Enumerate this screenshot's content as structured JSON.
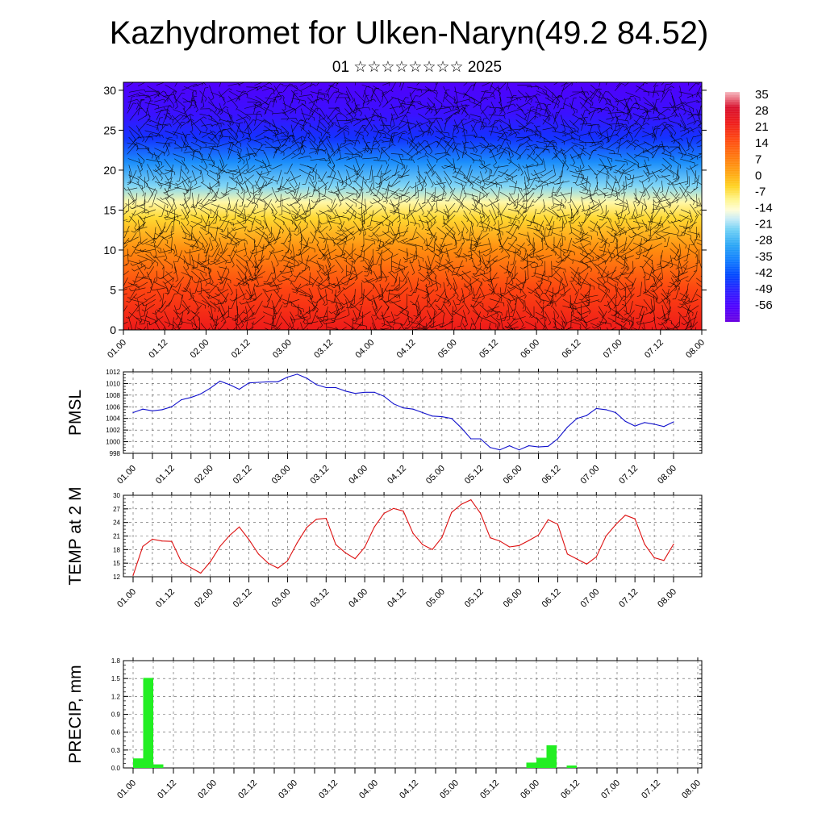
{
  "title": "Kazhydromet for Ulken-Naryn(49.2 84.52)",
  "subtitle": "01 ☆☆☆☆☆☆☆☆ 2025",
  "colors": {
    "pmsl_line": "#1111cc",
    "temp_line": "#dd1111",
    "precip_bar": "#22ee22",
    "axis": "#000000"
  },
  "chart_data": [
    {
      "id": "cross_section",
      "type": "heatmap",
      "x_tick_labels": [
        "01.00",
        "01.12",
        "02.00",
        "02.12",
        "03.00",
        "03.12",
        "04.00",
        "04.12",
        "05.00",
        "05.12",
        "06.00",
        "06.12",
        "07.00",
        "07.12",
        "08.00"
      ],
      "y_tick_labels": [
        "0",
        "5",
        "10",
        "15",
        "20",
        "25",
        "30"
      ],
      "ylim": [
        0,
        31
      ],
      "colorbar_labels": [
        "35",
        "28",
        "21",
        "14",
        "7",
        "0",
        "-7",
        "-14",
        "-21",
        "-28",
        "-35",
        "-42",
        "-49",
        "-56"
      ],
      "colorbar_range": [
        -63,
        42
      ],
      "overlay": "wind barbs",
      "temperature_profile": [
        {
          "level": 0,
          "value": 28
        },
        {
          "level": 5,
          "value": 21
        },
        {
          "level": 10,
          "value": 9
        },
        {
          "level": 14,
          "value": -2
        },
        {
          "level": 16,
          "value": -9
        },
        {
          "level": 18,
          "value": -20
        },
        {
          "level": 21,
          "value": -32
        },
        {
          "level": 24,
          "value": -45
        },
        {
          "level": 27,
          "value": -52
        },
        {
          "level": 31,
          "value": -57
        }
      ]
    },
    {
      "id": "pmsl",
      "type": "line",
      "ylabel": "PMSL",
      "ylim": [
        998,
        1012
      ],
      "y_tick_labels": [
        "998",
        "1000",
        "1002",
        "1004",
        "1006",
        "1008",
        "1010",
        "1012"
      ],
      "x_tick_labels": [
        "01.00",
        "01.12",
        "02.00",
        "02.12",
        "03.00",
        "03.12",
        "04.00",
        "04.12",
        "05.00",
        "05.12",
        "06.00",
        "06.12",
        "07.00",
        "07.12",
        "08.00"
      ],
      "x_hours": [
        0,
        3,
        6,
        9,
        12,
        15,
        18,
        21,
        24,
        27,
        30,
        33,
        36,
        39,
        42,
        45,
        48,
        51,
        54,
        57,
        60,
        63,
        66,
        69,
        72,
        75,
        78,
        81,
        84,
        87,
        90,
        93,
        96,
        99,
        102,
        105,
        108,
        111,
        114,
        117,
        120,
        123,
        126,
        129,
        132,
        135,
        138,
        141,
        144,
        147,
        150,
        153,
        156,
        159,
        162,
        165,
        168
      ],
      "values": [
        1005,
        1005.6,
        1005.3,
        1005.5,
        1006,
        1007.2,
        1007.6,
        1008.2,
        1009.2,
        1010.4,
        1009.8,
        1009,
        1010.1,
        1010.2,
        1010.3,
        1010.3,
        1011.1,
        1011.6,
        1010.9,
        1009.8,
        1009.3,
        1009.3,
        1008.7,
        1008.3,
        1008.5,
        1008.5,
        1007.8,
        1006.5,
        1005.8,
        1005.6,
        1005,
        1004.4,
        1004.3,
        1004,
        1002.4,
        1000.5,
        1000.5,
        999,
        998.6,
        999.3,
        998.6,
        999.3,
        999.1,
        999.2,
        1000.5,
        1002.5,
        1004,
        1004.5,
        1005.7,
        1005.5,
        1005,
        1003.5,
        1002.7,
        1003.3,
        1003,
        1002.6,
        1003.4
      ]
    },
    {
      "id": "temp2m",
      "type": "line",
      "ylabel": "TEMP at 2 M",
      "ylim": [
        12,
        30
      ],
      "y_tick_labels": [
        "12",
        "15",
        "18",
        "21",
        "24",
        "27",
        "30"
      ],
      "x_tick_labels": [
        "01.00",
        "01.12",
        "02.00",
        "02.12",
        "03.00",
        "03.12",
        "04.00",
        "04.12",
        "05.00",
        "05.12",
        "06.00",
        "06.12",
        "07.00",
        "07.12",
        "08.00"
      ],
      "x_hours": [
        0,
        3,
        6,
        9,
        12,
        15,
        18,
        21,
        24,
        27,
        30,
        33,
        36,
        39,
        42,
        45,
        48,
        51,
        54,
        57,
        60,
        63,
        66,
        69,
        72,
        75,
        78,
        81,
        84,
        87,
        90,
        93,
        96,
        99,
        102,
        105,
        108,
        111,
        114,
        117,
        120,
        123,
        126,
        129,
        132,
        135,
        138,
        141,
        144,
        147,
        150,
        153,
        156,
        159,
        162,
        165,
        168
      ],
      "values": [
        12.3,
        18.7,
        20.3,
        19.9,
        19.8,
        15.3,
        14,
        12.8,
        15.3,
        18.7,
        21.1,
        23,
        20.2,
        17,
        15,
        13.9,
        15.5,
        19.5,
        22.9,
        24.7,
        24.9,
        19.1,
        17.3,
        16,
        18.5,
        23,
        26,
        27.1,
        26.5,
        21.6,
        19.1,
        18,
        20.7,
        26.2,
        28,
        29,
        26,
        20.6,
        19.9,
        18.6,
        18.9,
        20,
        21.2,
        24.6,
        23.6,
        17,
        15.9,
        14.8,
        16.4,
        21,
        23.5,
        25.6,
        24.8,
        19.2,
        16.2,
        15.6,
        19.2
      ]
    },
    {
      "id": "precip",
      "type": "bar",
      "ylabel": "PRECIP, mm",
      "ylim": [
        0,
        1.8
      ],
      "y_tick_labels": [
        "0.0",
        "0.3",
        "0.6",
        "0.9",
        "1.2",
        "1.5",
        "1.8"
      ],
      "x_tick_labels": [
        "01.00",
        "01.12",
        "02.00",
        "02.12",
        "03.00",
        "03.12",
        "04.00",
        "04.12",
        "05.00",
        "05.12",
        "06.00",
        "06.12",
        "07.00",
        "07.12",
        "08.00"
      ],
      "bar_width_hours": 3,
      "x_hours": [
        0,
        3,
        6,
        117,
        120,
        123,
        129
      ],
      "values": [
        0.16,
        1.51,
        0.06,
        0.09,
        0.17,
        0.38,
        0.04
      ]
    }
  ]
}
